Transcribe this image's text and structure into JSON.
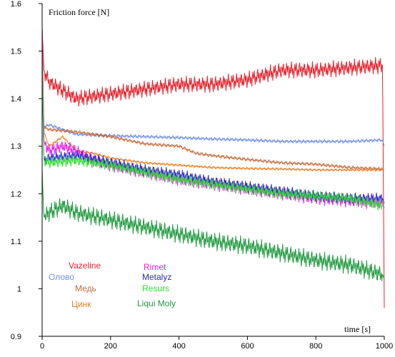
{
  "chart_data": {
    "type": "line",
    "ylabel": "Friction force [N]",
    "xlabel": "time [s]",
    "xlim": [
      0,
      1000
    ],
    "ylim": [
      0.9,
      1.6
    ],
    "x_ticks": [
      "0",
      "200",
      "400",
      "600",
      "800",
      "1000"
    ],
    "y_ticks": [
      "0.9",
      "1",
      "1.1",
      "1.2",
      "1.3",
      "1.4",
      "1.5",
      "1.6"
    ],
    "grid": false,
    "legend_position": "bottom-left",
    "series": [
      {
        "name": "Vazeline",
        "color": "#e8202a",
        "noise": 0.018,
        "x": [
          0,
          5,
          20,
          100,
          200,
          300,
          400,
          500,
          600,
          700,
          800,
          900,
          995,
          1000
        ],
        "y": [
          1.55,
          1.46,
          1.435,
          1.4,
          1.41,
          1.42,
          1.43,
          1.43,
          1.44,
          1.46,
          1.46,
          1.465,
          1.47,
          0.96
        ]
      },
      {
        "name": "Олово",
        "color": "#6f8fe8",
        "noise": 0.004,
        "x": [
          0,
          5,
          20,
          100,
          200,
          300,
          400,
          500,
          600,
          700,
          800,
          900,
          995,
          1000
        ],
        "y": [
          1.5,
          1.34,
          1.345,
          1.325,
          1.322,
          1.32,
          1.318,
          1.315,
          1.313,
          1.31,
          1.31,
          1.31,
          1.313,
          1.3
        ]
      },
      {
        "name": "Медь",
        "color": "#c86a3a",
        "noise": 0.004,
        "x": [
          0,
          5,
          20,
          100,
          200,
          300,
          400,
          450,
          500,
          600,
          700,
          800,
          900,
          995,
          1000
        ],
        "y": [
          1.5,
          1.34,
          1.335,
          1.33,
          1.32,
          1.305,
          1.3,
          1.285,
          1.28,
          1.272,
          1.265,
          1.262,
          1.255,
          1.252,
          1.25
        ]
      },
      {
        "name": "Цинк",
        "color": "#f07d1a",
        "noise": 0.003,
        "x": [
          0,
          5,
          20,
          60,
          100,
          150,
          200,
          300,
          400,
          500,
          600,
          700,
          800,
          900,
          995,
          1000
        ],
        "y": [
          1.55,
          1.33,
          1.3,
          1.32,
          1.29,
          1.285,
          1.275,
          1.265,
          1.26,
          1.255,
          1.253,
          1.252,
          1.25,
          1.25,
          1.25,
          1.25
        ]
      },
      {
        "name": "Rimet",
        "color": "#e81ee8",
        "noise": 0.014,
        "x": [
          0,
          5,
          20,
          60,
          100,
          150,
          200,
          300,
          400,
          500,
          600,
          700,
          800,
          900,
          995,
          1000
        ],
        "y": [
          1.55,
          1.31,
          1.29,
          1.3,
          1.29,
          1.27,
          1.26,
          1.245,
          1.23,
          1.22,
          1.21,
          1.2,
          1.19,
          1.185,
          1.18,
          1.17
        ]
      },
      {
        "name": "Metalyz",
        "color": "#2b2bd0",
        "noise": 0.012,
        "x": [
          0,
          5,
          20,
          100,
          200,
          300,
          400,
          500,
          600,
          700,
          800,
          900,
          995,
          1000
        ],
        "y": [
          1.45,
          1.27,
          1.275,
          1.28,
          1.265,
          1.25,
          1.24,
          1.225,
          1.215,
          1.205,
          1.195,
          1.19,
          1.19,
          1.18
        ]
      },
      {
        "name": "Resurs",
        "color": "#2ee02e",
        "noise": 0.012,
        "x": [
          0,
          5,
          20,
          100,
          200,
          300,
          400,
          500,
          600,
          700,
          800,
          900,
          995,
          1000
        ],
        "y": [
          1.5,
          1.27,
          1.265,
          1.27,
          1.26,
          1.245,
          1.23,
          1.22,
          1.21,
          1.2,
          1.195,
          1.19,
          1.175,
          1.17
        ]
      },
      {
        "name": "Liqui Moly",
        "color": "#1f9a3e",
        "noise": 0.02,
        "x": [
          0,
          5,
          20,
          60,
          100,
          200,
          300,
          400,
          500,
          600,
          700,
          800,
          900,
          995,
          1000
        ],
        "y": [
          1.25,
          1.15,
          1.16,
          1.175,
          1.16,
          1.145,
          1.13,
          1.115,
          1.1,
          1.09,
          1.075,
          1.06,
          1.05,
          1.03,
          1.02
        ]
      }
    ]
  }
}
